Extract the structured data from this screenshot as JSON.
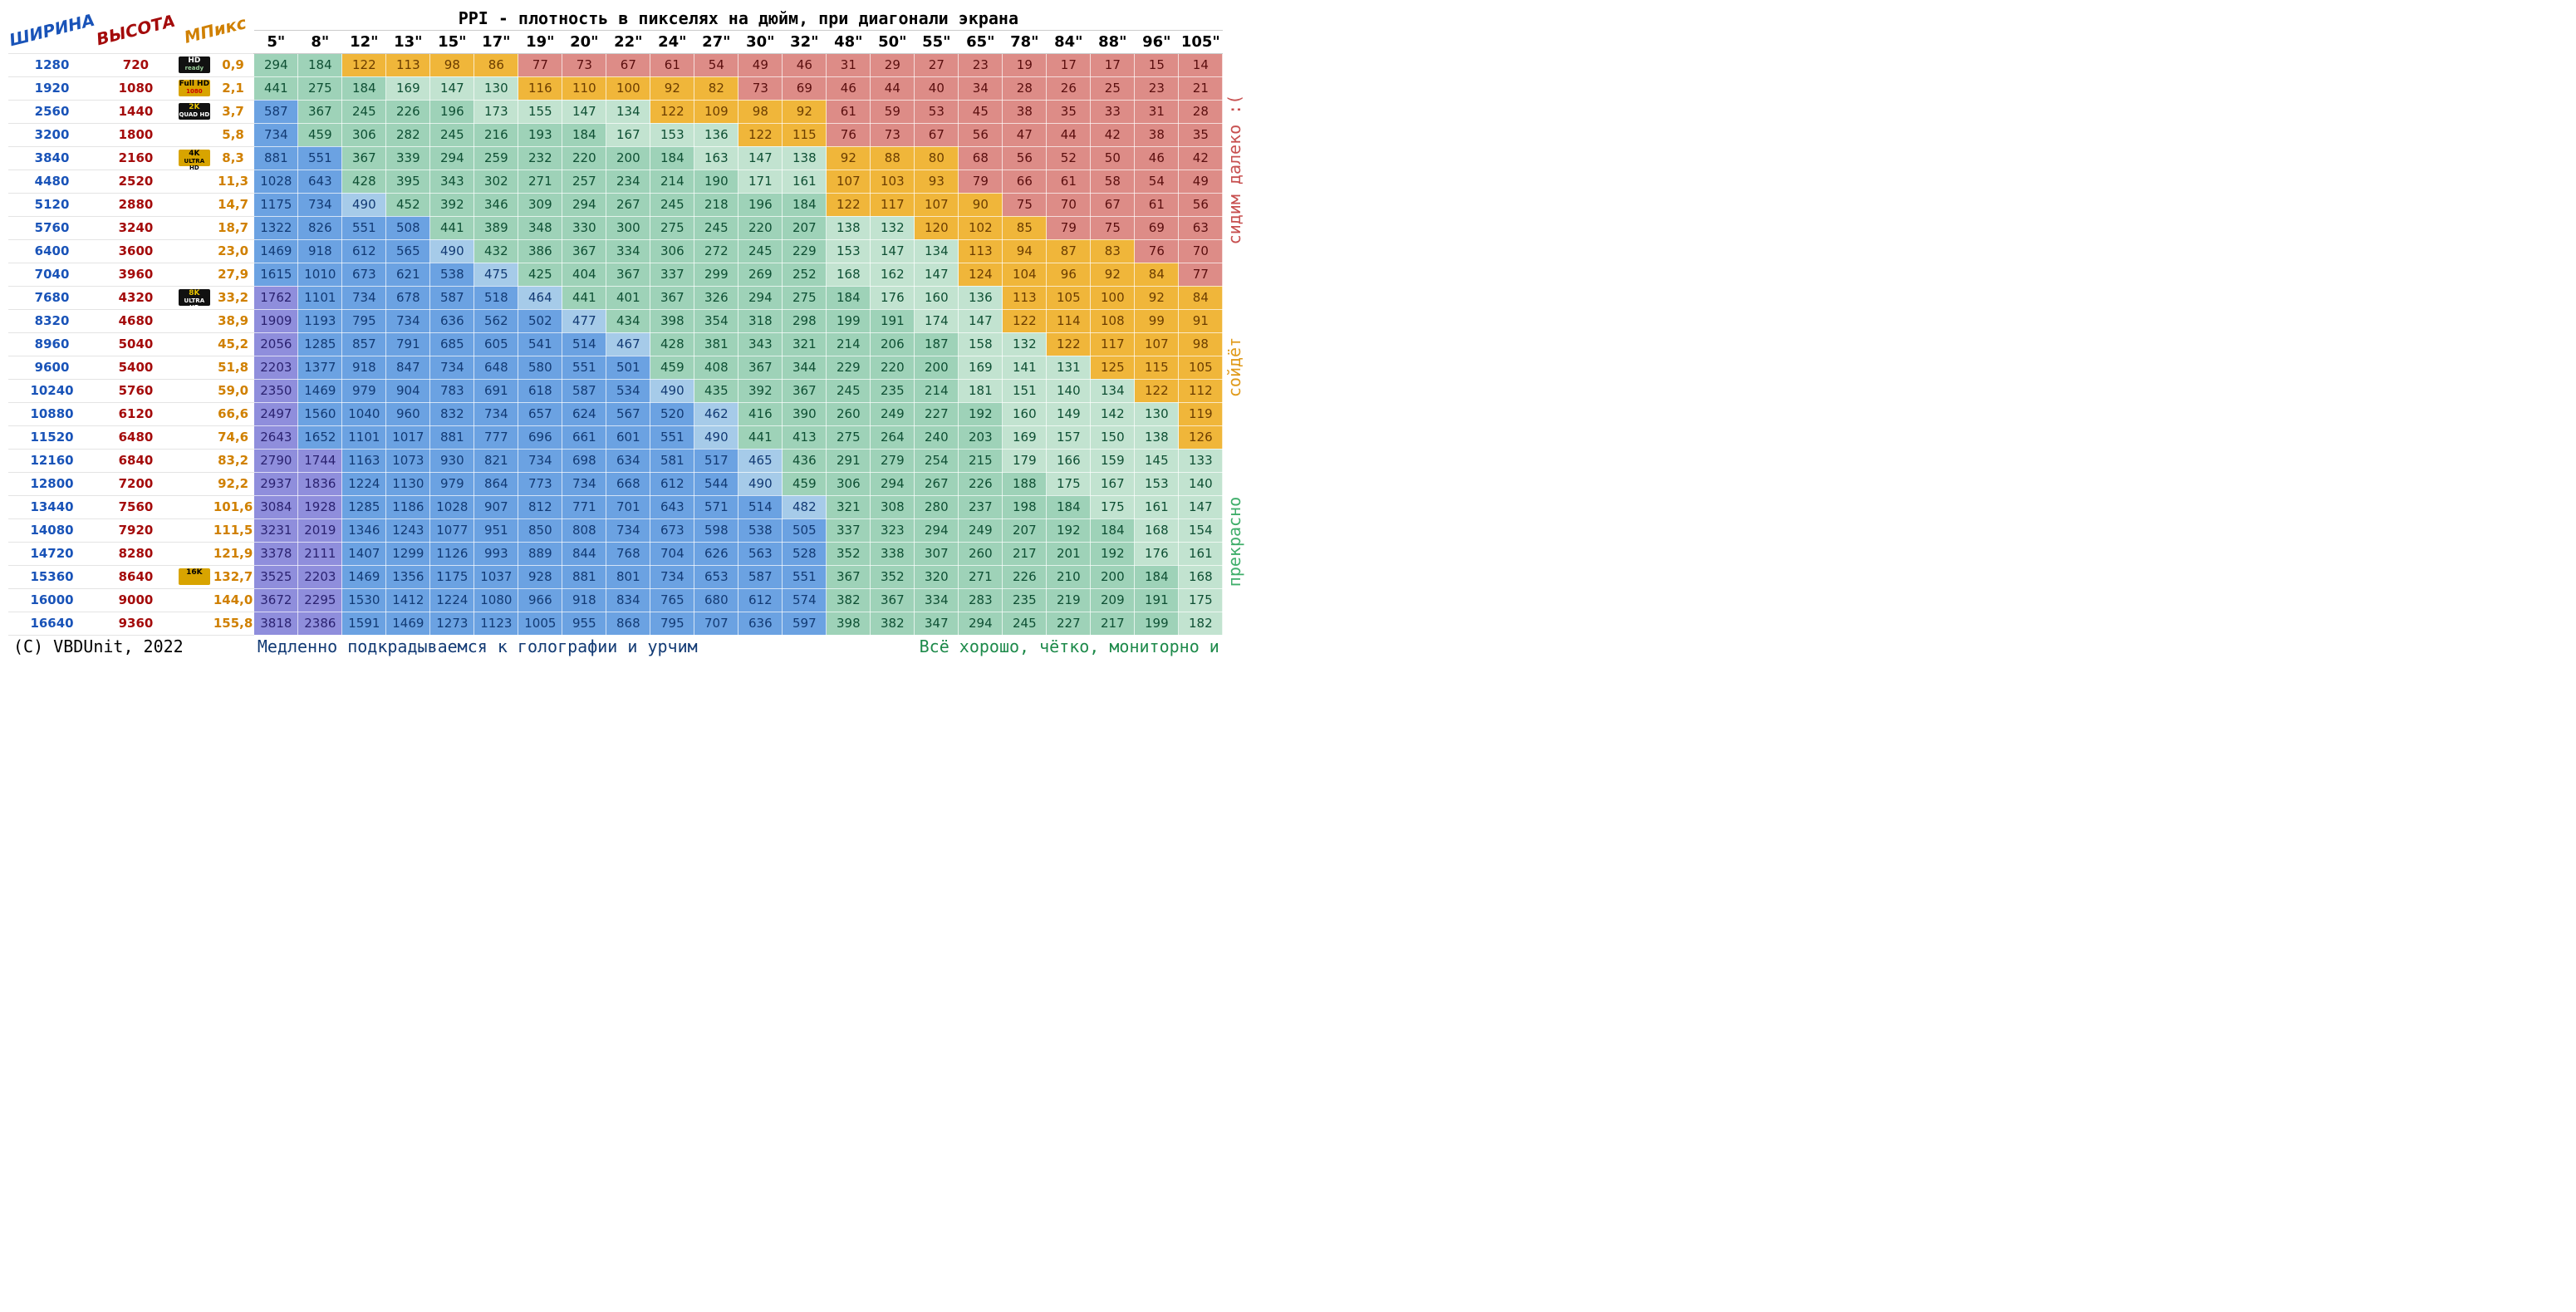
{
  "title": "PPI - плотность в пикселях на дюйм, при диагонали экрана",
  "headers": {
    "width_label": "ШИРИНА",
    "height_label": "ВЫСОТА",
    "mpix_label": "МПикс",
    "rotate_deg": -14
  },
  "diagonals": [
    "5\"",
    "8\"",
    "12\"",
    "13\"",
    "15\"",
    "17\"",
    "19\"",
    "20\"",
    "22\"",
    "24\"",
    "27\"",
    "30\"",
    "32\"",
    "48\"",
    "50\"",
    "55\"",
    "65\"",
    "78\"",
    "84\"",
    "88\"",
    "96\"",
    "105\""
  ],
  "rows": [
    {
      "w": "1280",
      "h": "720",
      "mp": "0,9",
      "badge": "hd",
      "v": [
        294,
        184,
        122,
        113,
        98,
        86,
        77,
        73,
        67,
        61,
        54,
        49,
        46,
        31,
        29,
        27,
        23,
        19,
        17,
        17,
        15,
        14
      ]
    },
    {
      "w": "1920",
      "h": "1080",
      "mp": "2,1",
      "badge": "fullhd",
      "v": [
        441,
        275,
        184,
        169,
        147,
        130,
        116,
        110,
        100,
        92,
        82,
        73,
        69,
        46,
        44,
        40,
        34,
        28,
        26,
        25,
        23,
        21
      ]
    },
    {
      "w": "2560",
      "h": "1440",
      "mp": "3,7",
      "badge": "2k",
      "v": [
        587,
        367,
        245,
        226,
        196,
        173,
        155,
        147,
        134,
        122,
        109,
        98,
        92,
        61,
        59,
        53,
        45,
        38,
        35,
        33,
        31,
        28
      ]
    },
    {
      "w": "3200",
      "h": "1800",
      "mp": "5,8",
      "badge": null,
      "v": [
        734,
        459,
        306,
        282,
        245,
        216,
        193,
        184,
        167,
        153,
        136,
        122,
        115,
        76,
        73,
        67,
        56,
        47,
        44,
        42,
        38,
        35
      ]
    },
    {
      "w": "3840",
      "h": "2160",
      "mp": "8,3",
      "badge": "4k",
      "v": [
        881,
        551,
        367,
        339,
        294,
        259,
        232,
        220,
        200,
        184,
        163,
        147,
        138,
        92,
        88,
        80,
        68,
        56,
        52,
        50,
        46,
        42
      ]
    },
    {
      "w": "4480",
      "h": "2520",
      "mp": "11,3",
      "badge": null,
      "v": [
        1028,
        643,
        428,
        395,
        343,
        302,
        271,
        257,
        234,
        214,
        190,
        171,
        161,
        107,
        103,
        93,
        79,
        66,
        61,
        58,
        54,
        49
      ]
    },
    {
      "w": "5120",
      "h": "2880",
      "mp": "14,7",
      "badge": null,
      "v": [
        1175,
        734,
        490,
        452,
        392,
        346,
        309,
        294,
        267,
        245,
        218,
        196,
        184,
        122,
        117,
        107,
        90,
        75,
        70,
        67,
        61,
        56
      ]
    },
    {
      "w": "5760",
      "h": "3240",
      "mp": "18,7",
      "badge": null,
      "v": [
        1322,
        826,
        551,
        508,
        441,
        389,
        348,
        330,
        300,
        275,
        245,
        220,
        207,
        138,
        132,
        120,
        102,
        85,
        79,
        75,
        69,
        63
      ]
    },
    {
      "w": "6400",
      "h": "3600",
      "mp": "23,0",
      "badge": null,
      "v": [
        1469,
        918,
        612,
        565,
        490,
        432,
        386,
        367,
        334,
        306,
        272,
        245,
        229,
        153,
        147,
        134,
        113,
        94,
        87,
        83,
        76,
        70
      ]
    },
    {
      "w": "7040",
      "h": "3960",
      "mp": "27,9",
      "badge": null,
      "v": [
        1615,
        1010,
        673,
        621,
        538,
        475,
        425,
        404,
        367,
        337,
        299,
        269,
        252,
        168,
        162,
        147,
        124,
        104,
        96,
        92,
        84,
        77
      ]
    },
    {
      "w": "7680",
      "h": "4320",
      "mp": "33,2",
      "badge": "8k",
      "v": [
        1762,
        1101,
        734,
        678,
        587,
        518,
        464,
        441,
        401,
        367,
        326,
        294,
        275,
        184,
        176,
        160,
        136,
        113,
        105,
        100,
        92,
        84
      ]
    },
    {
      "w": "8320",
      "h": "4680",
      "mp": "38,9",
      "badge": null,
      "v": [
        1909,
        1193,
        795,
        734,
        636,
        562,
        502,
        477,
        434,
        398,
        354,
        318,
        298,
        199,
        191,
        174,
        147,
        122,
        114,
        108,
        99,
        91
      ]
    },
    {
      "w": "8960",
      "h": "5040",
      "mp": "45,2",
      "badge": null,
      "v": [
        2056,
        1285,
        857,
        791,
        685,
        605,
        541,
        514,
        467,
        428,
        381,
        343,
        321,
        214,
        206,
        187,
        158,
        132,
        122,
        117,
        107,
        98
      ]
    },
    {
      "w": "9600",
      "h": "5400",
      "mp": "51,8",
      "badge": null,
      "v": [
        2203,
        1377,
        918,
        847,
        734,
        648,
        580,
        551,
        501,
        459,
        408,
        367,
        344,
        229,
        220,
        200,
        169,
        141,
        131,
        125,
        115,
        105
      ]
    },
    {
      "w": "10240",
      "h": "5760",
      "mp": "59,0",
      "badge": null,
      "v": [
        2350,
        1469,
        979,
        904,
        783,
        691,
        618,
        587,
        534,
        490,
        435,
        392,
        367,
        245,
        235,
        214,
        181,
        151,
        140,
        134,
        122,
        112
      ]
    },
    {
      "w": "10880",
      "h": "6120",
      "mp": "66,6",
      "badge": null,
      "v": [
        2497,
        1560,
        1040,
        960,
        832,
        734,
        657,
        624,
        567,
        520,
        462,
        416,
        390,
        260,
        249,
        227,
        192,
        160,
        149,
        142,
        130,
        119
      ]
    },
    {
      "w": "11520",
      "h": "6480",
      "mp": "74,6",
      "badge": null,
      "v": [
        2643,
        1652,
        1101,
        1017,
        881,
        777,
        696,
        661,
        601,
        551,
        490,
        441,
        413,
        275,
        264,
        240,
        203,
        169,
        157,
        150,
        138,
        126
      ]
    },
    {
      "w": "12160",
      "h": "6840",
      "mp": "83,2",
      "badge": null,
      "v": [
        2790,
        1744,
        1163,
        1073,
        930,
        821,
        734,
        698,
        634,
        581,
        517,
        465,
        436,
        291,
        279,
        254,
        215,
        179,
        166,
        159,
        145,
        133
      ]
    },
    {
      "w": "12800",
      "h": "7200",
      "mp": "92,2",
      "badge": null,
      "v": [
        2937,
        1836,
        1224,
        1130,
        979,
        864,
        773,
        734,
        668,
        612,
        544,
        490,
        459,
        306,
        294,
        267,
        226,
        188,
        175,
        167,
        153,
        140
      ]
    },
    {
      "w": "13440",
      "h": "7560",
      "mp": "101,6",
      "badge": null,
      "v": [
        3084,
        1928,
        1285,
        1186,
        1028,
        907,
        812,
        771,
        701,
        643,
        571,
        514,
        482,
        321,
        308,
        280,
        237,
        198,
        184,
        175,
        161,
        147
      ]
    },
    {
      "w": "14080",
      "h": "7920",
      "mp": "111,5",
      "badge": null,
      "v": [
        3231,
        2019,
        1346,
        1243,
        1077,
        951,
        850,
        808,
        734,
        673,
        598,
        538,
        505,
        337,
        323,
        294,
        249,
        207,
        192,
        184,
        168,
        154
      ]
    },
    {
      "w": "14720",
      "h": "8280",
      "mp": "121,9",
      "badge": null,
      "v": [
        3378,
        2111,
        1407,
        1299,
        1126,
        993,
        889,
        844,
        768,
        704,
        626,
        563,
        528,
        352,
        338,
        307,
        260,
        217,
        201,
        192,
        176,
        161
      ]
    },
    {
      "w": "15360",
      "h": "8640",
      "mp": "132,7",
      "badge": "16k",
      "v": [
        3525,
        2203,
        1469,
        1356,
        1175,
        1037,
        928,
        881,
        801,
        734,
        653,
        587,
        551,
        367,
        352,
        320,
        271,
        226,
        210,
        200,
        184,
        168
      ]
    },
    {
      "w": "16000",
      "h": "9000",
      "mp": "144,0",
      "badge": null,
      "v": [
        3672,
        2295,
        1530,
        1412,
        1224,
        1080,
        966,
        918,
        834,
        765,
        680,
        612,
        574,
        382,
        367,
        334,
        283,
        235,
        219,
        209,
        191,
        175
      ]
    },
    {
      "w": "16640",
      "h": "9360",
      "mp": "155,8",
      "badge": null,
      "v": [
        3818,
        2386,
        1591,
        1469,
        1273,
        1123,
        1005,
        955,
        868,
        795,
        707,
        636,
        597,
        398,
        382,
        347,
        294,
        245,
        227,
        217,
        199,
        182
      ]
    }
  ],
  "footer": {
    "copyright": "(C) VBDUnit, 2022",
    "left": "Медленно подкрадываемся к голографии и урчим",
    "right": "Всё хорошо, чётко, мониторно и"
  },
  "sidebar": {
    "red": {
      "text": "сидим далеко :(",
      "color": "#c74f4f",
      "rows": 10
    },
    "orange": {
      "text": "сойдёт",
      "color": "#e09a1a",
      "rows": 7
    },
    "green": {
      "text": "прекрасно",
      "color": "#3fae6a",
      "rows": 8
    }
  },
  "colors": {
    "bands": {
      "purple": {
        "bg": "#8f8edc",
        "fg": "#2b2270"
      },
      "blue_d": {
        "bg": "#6ba2e2",
        "fg": "#123a74"
      },
      "blue_l": {
        "bg": "#a6cbe9",
        "fg": "#123a74"
      },
      "green_d": {
        "bg": "#9ed2b8",
        "fg": "#0e4f33"
      },
      "green_l": {
        "bg": "#c2e3d0",
        "fg": "#0e4f33"
      },
      "orange": {
        "bg": "#f0b63a",
        "fg": "#6b3d00"
      },
      "red": {
        "bg": "#dd8c87",
        "fg": "#5a0e0e"
      }
    },
    "thresholds": {
      "purple_min": 1700,
      "blue_d_min": 500,
      "blue_l_min": 460,
      "green_d_min": 184,
      "green_l_min": 127,
      "orange_min": 80
    }
  },
  "badges": {
    "hd": {
      "bg": "#111",
      "top": "HD",
      "top_c": "#fff",
      "bot": "ready",
      "bot_c": "#9c9"
    },
    "fullhd": {
      "bg": "#d8a400",
      "top": "Full HD",
      "top_c": "#000",
      "bot": "1080",
      "bot_c": "#c00"
    },
    "2k": {
      "bg": "#111",
      "top": "2K",
      "top_c": "#e6c200",
      "bot": "QUAD HD",
      "bot_c": "#fff"
    },
    "4k": {
      "bg": "#d8a400",
      "top": "4K",
      "top_c": "#000",
      "bot": "ULTRA HD",
      "bot_c": "#000"
    },
    "8k": {
      "bg": "#111",
      "top": "8K",
      "top_c": "#e6c200",
      "bot": "ULTRA HD",
      "bot_c": "#fff"
    },
    "16k": {
      "bg": "#d8a400",
      "top": "16K",
      "top_c": "#000",
      "bot": "",
      "bot_c": "#000"
    }
  }
}
